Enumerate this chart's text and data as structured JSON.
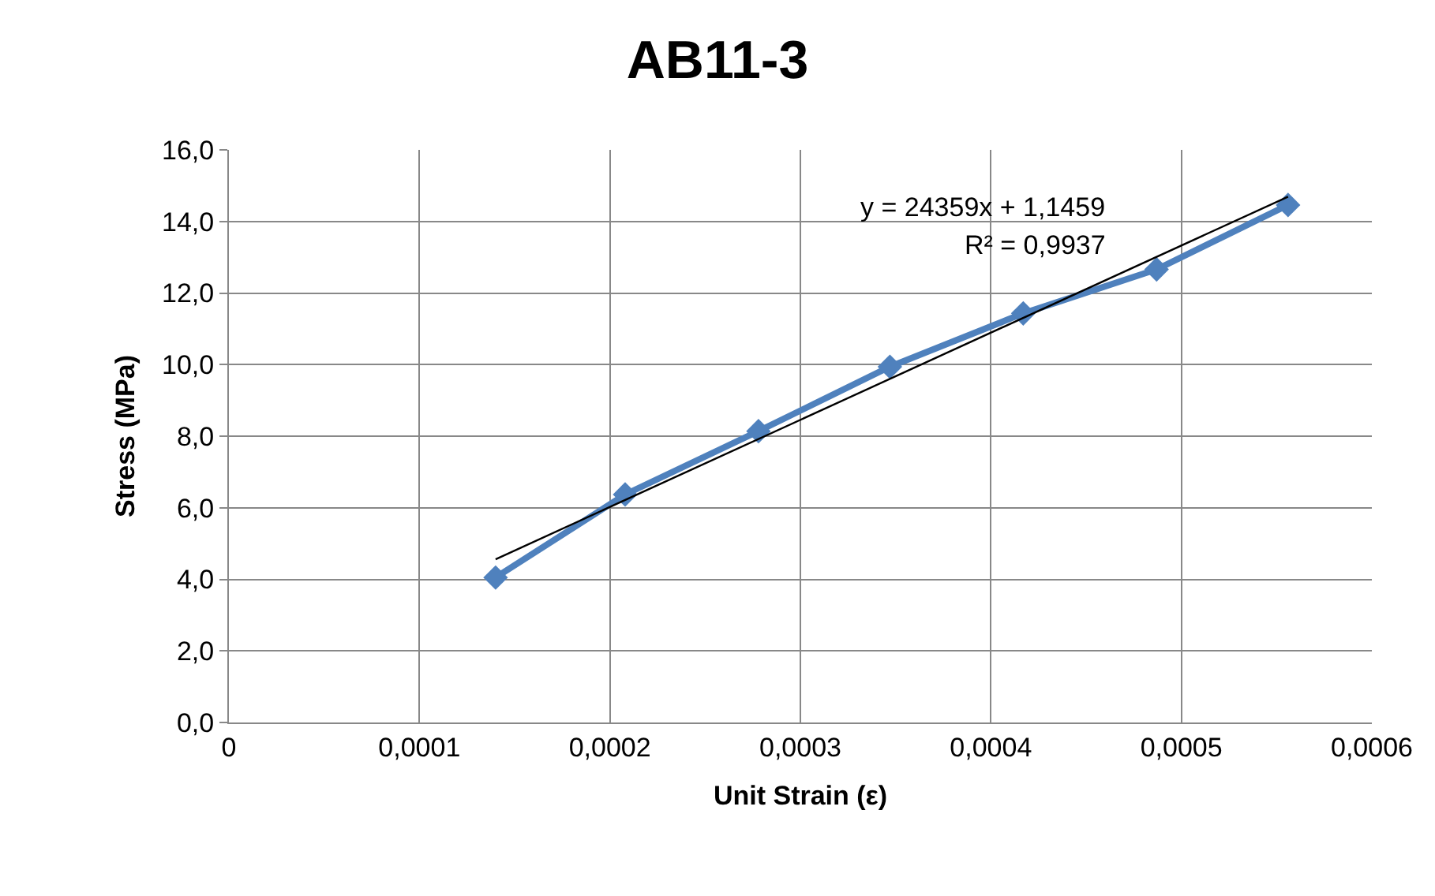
{
  "chart_data": {
    "type": "line",
    "title": "AB11-3",
    "xlabel": "Unit Strain (ε)",
    "ylabel": "Stress (MPa)",
    "x": [
      0.00014,
      0.000208,
      0.000278,
      0.000347,
      0.000417,
      0.000487,
      0.000556
    ],
    "series": [
      {
        "color": "#4f81bd",
        "values": [
          4.05,
          6.37,
          8.14,
          9.94,
          11.43,
          12.66,
          14.46
        ],
        "marker": "diamond"
      },
      {
        "type": "line",
        "color": "#000000",
        "x": [
          0.00014,
          0.000556
        ],
        "values": [
          4.56,
          14.69
        ],
        "marker": "none"
      }
    ],
    "annotations": [
      "y = 24359x + 1,1459",
      "R² = 0,9937"
    ],
    "xlim": [
      0,
      0.0006
    ],
    "xticks": [
      0,
      {
        "value": 0.0001,
        "label": "0,0001"
      },
      {
        "value": 0.0002,
        "label": "0,0002"
      },
      {
        "value": 0.0003,
        "label": "0,0003"
      },
      {
        "value": 0.0004,
        "label": "0,0004"
      },
      {
        "value": 0.0005,
        "label": "0,0005"
      },
      {
        "value": 0.0006,
        "label": "0,0006"
      }
    ],
    "ylim": [
      0,
      16
    ],
    "yticks": [
      {
        "value": 0,
        "label": "0,0"
      },
      {
        "value": 2,
        "label": "2,0"
      },
      {
        "value": 4,
        "label": "4,0"
      },
      {
        "value": 6,
        "label": "6,0"
      },
      {
        "value": 8,
        "label": "8,0"
      },
      {
        "value": 10,
        "label": "10,0"
      },
      {
        "value": 12,
        "label": "12,0"
      },
      {
        "value": 14,
        "label": "14,0"
      },
      {
        "value": 16,
        "label": "16,0"
      }
    ],
    "grid": true
  }
}
